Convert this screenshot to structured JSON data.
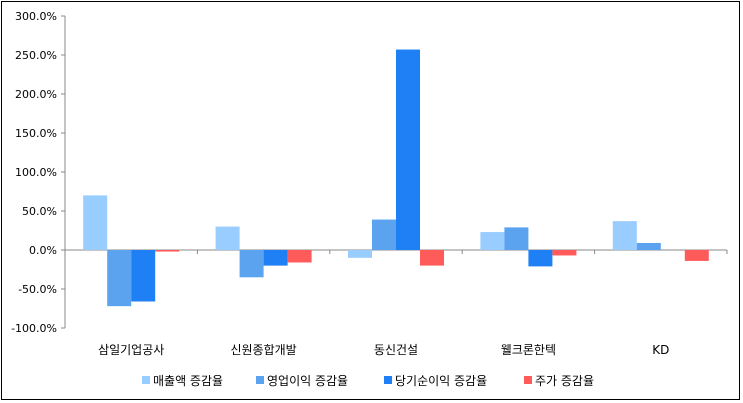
{
  "chart_data": {
    "type": "bar",
    "categories": [
      "삼일기업공사",
      "신원종합개발",
      "동신건설",
      "웰크론한텍",
      "KD"
    ],
    "series": [
      {
        "name": "매출액 증감율",
        "color": "#99ccff",
        "values": [
          70.0,
          30.0,
          -10.0,
          23.0,
          37.0
        ]
      },
      {
        "name": "영업이익 증감율",
        "color": "#5ba3ef",
        "values": [
          -72.0,
          -35.0,
          39.0,
          29.0,
          9.0
        ]
      },
      {
        "name": "당기순이익 증감율",
        "color": "#1f7ff5",
        "values": [
          -66.0,
          -20.0,
          257.0,
          -21.0,
          0.0
        ]
      },
      {
        "name": "주가 증감율",
        "color": "#ff5b5b",
        "values": [
          -2.0,
          -16.0,
          -20.0,
          -7.0,
          -14.0
        ]
      }
    ],
    "ylim": [
      -100,
      300
    ],
    "yticks": [
      -100,
      -50,
      0,
      50,
      100,
      150,
      200,
      250,
      300
    ],
    "ytick_labels": [
      "-100.0%",
      "-50.0%",
      "0.0%",
      "50.0%",
      "100.0%",
      "150.0%",
      "200.0%",
      "250.0%",
      "300.0%"
    ],
    "legend_position": "bottom",
    "grid": false
  }
}
